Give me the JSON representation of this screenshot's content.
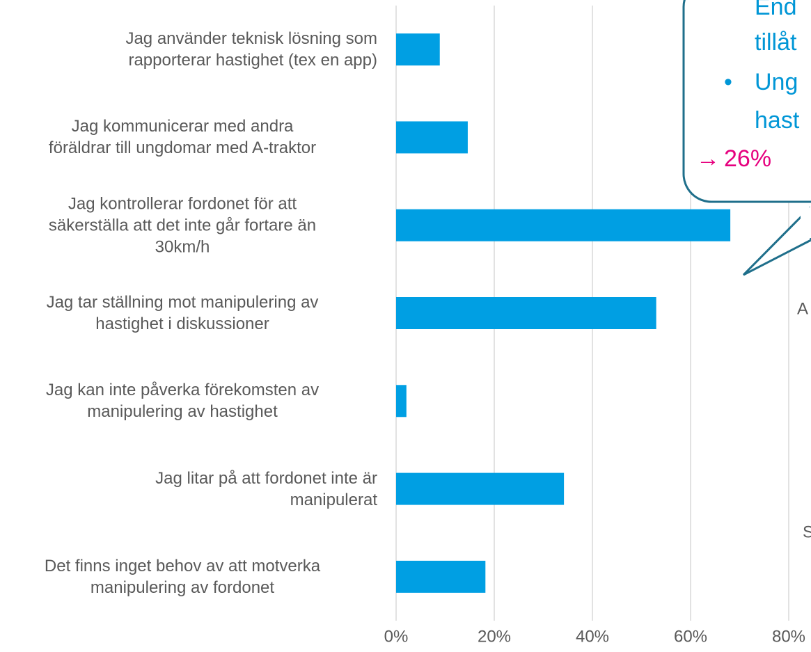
{
  "chart_data": {
    "type": "bar",
    "orientation": "horizontal",
    "categories": [
      "Jag använder teknisk lösning som\nrapporterar hastighet (tex en app)",
      "Jag kommunicerar med andra\nföräldrar till ungdomar med A-traktor",
      "Jag kontrollerar fordonet för att\nsäkerställa att det inte går fortare än\n30km/h",
      "Jag tar ställning mot manipulering av\nhastighet i diskussioner",
      "Jag kan inte påverka förekomsten av\nmanipulering av hastighet",
      "Jag litar på att fordonet inte är\nmanipulerat",
      "Det finns inget behov av att motverka\nmanipulering av fordonet"
    ],
    "values": [
      8.9,
      14.6,
      68.1,
      53.0,
      2.1,
      34.2,
      18.2
    ],
    "color": "#009fe3",
    "xlim": [
      0,
      100
    ],
    "xticks": [
      {
        "value": 0,
        "label": "0%"
      },
      {
        "value": 20,
        "label": "20%"
      },
      {
        "value": 40,
        "label": "40%"
      },
      {
        "value": 60,
        "label": "60%"
      },
      {
        "value": 80,
        "label": "80%"
      }
    ],
    "grid": true,
    "annotations": [
      "End",
      "tillåt",
      "•",
      "Ung",
      "hast",
      "→",
      "26%",
      "A",
      "S"
    ]
  }
}
